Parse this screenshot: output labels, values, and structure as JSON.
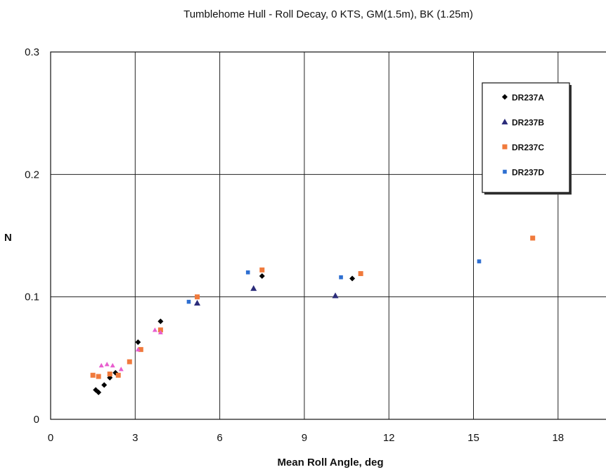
{
  "chart_data": {
    "type": "scatter",
    "title": "Tumblehome Hull - Roll  Decay, 0 KTS, GM(1.5m), BK (1.25m)",
    "xlabel": "Mean Roll Angle, deg",
    "ylabel": "N",
    "xlim": [
      0,
      21
    ],
    "ylim": [
      0,
      0.3
    ],
    "xticks": [
      0,
      3,
      6,
      9,
      12,
      15,
      18
    ],
    "yticks": [
      0,
      0.1,
      0.2,
      0.3
    ],
    "xtick_labels": [
      "0",
      "3",
      "6",
      "9",
      "12",
      "15",
      "18"
    ],
    "ytick_labels": [
      "0",
      "0.1",
      "0.2",
      "0.3"
    ],
    "grid": true,
    "legend_position": "top-right",
    "series": [
      {
        "name": "DR237A",
        "marker": "diamond",
        "color": "#000000",
        "points": [
          [
            1.6,
            0.024
          ],
          [
            1.7,
            0.022
          ],
          [
            1.9,
            0.028
          ],
          [
            2.1,
            0.034
          ],
          [
            2.3,
            0.038
          ],
          [
            3.1,
            0.063
          ],
          [
            3.9,
            0.08
          ],
          [
            7.5,
            0.117
          ],
          [
            10.7,
            0.115
          ]
        ]
      },
      {
        "name": "DR237B",
        "marker": "triangle",
        "color": "#2b2c7a",
        "points": [
          [
            5.2,
            0.095
          ],
          [
            7.2,
            0.107
          ],
          [
            10.1,
            0.101
          ]
        ]
      },
      {
        "name": "DR237C",
        "marker": "square",
        "color": "#f07a3c",
        "points": [
          [
            1.5,
            0.036
          ],
          [
            1.7,
            0.035
          ],
          [
            2.1,
            0.037
          ],
          [
            2.4,
            0.036
          ],
          [
            2.8,
            0.047
          ],
          [
            3.2,
            0.057
          ],
          [
            3.9,
            0.073
          ],
          [
            5.2,
            0.1
          ],
          [
            7.5,
            0.122
          ],
          [
            11.0,
            0.119
          ],
          [
            17.1,
            0.148
          ]
        ]
      },
      {
        "name": "DR237D",
        "marker": "square-small",
        "color": "#2e6fd1",
        "points": [
          [
            4.9,
            0.096
          ],
          [
            7.0,
            0.12
          ],
          [
            10.3,
            0.116
          ],
          [
            15.2,
            0.129
          ]
        ]
      },
      {
        "name": "",
        "marker": "triangle-small",
        "color": "#e85fcf",
        "points": [
          [
            1.8,
            0.044
          ],
          [
            2.0,
            0.045
          ],
          [
            2.2,
            0.044
          ],
          [
            2.5,
            0.041
          ],
          [
            3.1,
            0.057
          ],
          [
            3.7,
            0.073
          ],
          [
            3.9,
            0.071
          ]
        ]
      }
    ]
  }
}
